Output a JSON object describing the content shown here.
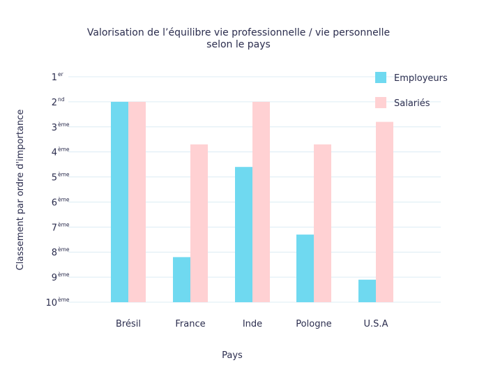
{
  "chart_data": {
    "type": "bar",
    "title_lines": [
      "Valorisation de l’équilibre vie professionnelle / vie personnelle",
      "selon le pays"
    ],
    "xlabel": "Pays",
    "ylabel": "Classement par ordre d'importance",
    "y_ticks": [
      {
        "num": "1",
        "sup": "er"
      },
      {
        "num": "2",
        "sup": "nd"
      },
      {
        "num": "3",
        "sup": "ème"
      },
      {
        "num": "4",
        "sup": "ème"
      },
      {
        "num": "5",
        "sup": "ème"
      },
      {
        "num": "6",
        "sup": "ème"
      },
      {
        "num": "7",
        "sup": "ème"
      },
      {
        "num": "8",
        "sup": "ème"
      },
      {
        "num": "9",
        "sup": "ème"
      },
      {
        "num": "10",
        "sup": "ème"
      }
    ],
    "y_axis": "rank, 1st at top, 10th at baseline",
    "grid": true,
    "legend_position": "top-right",
    "categories": [
      "Brésil",
      "France",
      "Inde",
      "Pologne",
      "U.S.A"
    ],
    "series": [
      {
        "name": "Employeurs",
        "color": "#6fd9f0",
        "values": [
          2,
          8.2,
          4.6,
          7.3,
          9.1
        ]
      },
      {
        "name": "Salariés",
        "color": "#ffd1d3",
        "values": [
          2,
          3.7,
          2,
          3.7,
          2.8
        ]
      }
    ]
  }
}
